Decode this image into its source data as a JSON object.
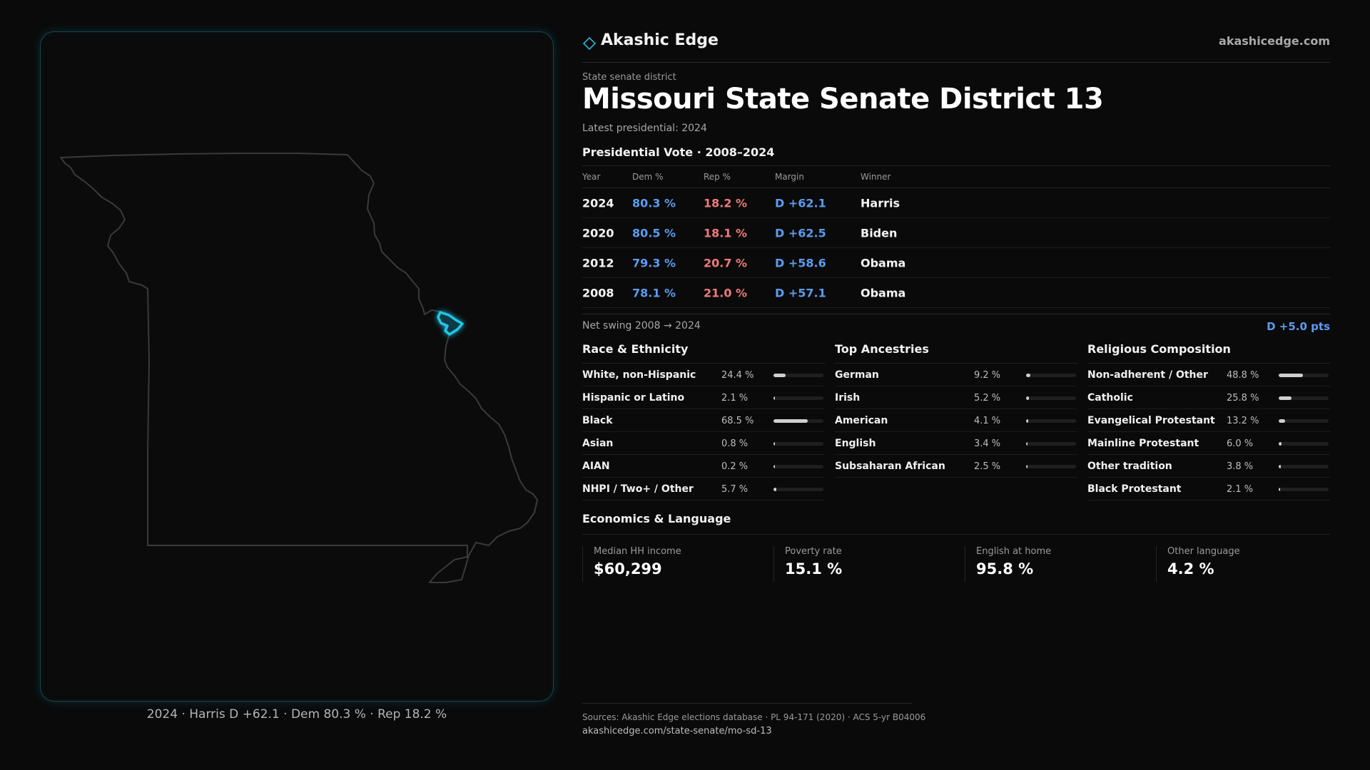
{
  "brand": {
    "name": "Akashic Edge",
    "url": "akashicedge.com",
    "accent": "#1fb8d6"
  },
  "header": {
    "kicker": "State senate district",
    "title": "Missouri State Senate District 13",
    "subtitle": "Latest presidential: 2024"
  },
  "map": {
    "caption": "2024 · Harris D +62.1 · Dem 80.3 % · Rep 18.2 %",
    "state_outline_color": "#3a3a3a",
    "district_color": "#1fb8d6"
  },
  "vote": {
    "title": "Presidential Vote · 2008–2024",
    "columns": [
      "Year",
      "Dem %",
      "Rep %",
      "Margin",
      "Winner"
    ],
    "rows": [
      {
        "year": "2024",
        "dem": "80.3 %",
        "rep": "18.2 %",
        "margin": "D +62.1",
        "winner": "Harris"
      },
      {
        "year": "2020",
        "dem": "80.5 %",
        "rep": "18.1 %",
        "margin": "D +62.5",
        "winner": "Biden"
      },
      {
        "year": "2012",
        "dem": "79.3 %",
        "rep": "20.7 %",
        "margin": "D +58.6",
        "winner": "Obama"
      },
      {
        "year": "2008",
        "dem": "78.1 %",
        "rep": "21.0 %",
        "margin": "D +57.1",
        "winner": "Obama"
      }
    ],
    "dem_color": "#5b9cf0",
    "rep_color": "#f07a7a"
  },
  "swing": {
    "label": "Net swing 2008 → 2024",
    "value": "D +5.0 pts"
  },
  "race": {
    "title": "Race & Ethnicity",
    "rows": [
      {
        "label": "White, non-Hispanic",
        "pct": "24.4 %",
        "value": 24.4
      },
      {
        "label": "Hispanic or Latino",
        "pct": "2.1 %",
        "value": 2.1
      },
      {
        "label": "Black",
        "pct": "68.5 %",
        "value": 68.5
      },
      {
        "label": "Asian",
        "pct": "0.8 %",
        "value": 0.8
      },
      {
        "label": "AIAN",
        "pct": "0.2 %",
        "value": 0.2
      },
      {
        "label": "NHPI / Two+ / Other",
        "pct": "5.7 %",
        "value": 5.7
      }
    ]
  },
  "ancestry": {
    "title": "Top Ancestries",
    "rows": [
      {
        "label": "German",
        "pct": "9.2 %",
        "value": 9.2
      },
      {
        "label": "Irish",
        "pct": "5.2 %",
        "value": 5.2
      },
      {
        "label": "American",
        "pct": "4.1 %",
        "value": 4.1
      },
      {
        "label": "English",
        "pct": "3.4 %",
        "value": 3.4
      },
      {
        "label": "Subsaharan African",
        "pct": "2.5 %",
        "value": 2.5
      }
    ]
  },
  "religion": {
    "title": "Religious Composition",
    "rows": [
      {
        "label": "Non-adherent / Other",
        "pct": "48.8 %",
        "value": 48.8
      },
      {
        "label": "Catholic",
        "pct": "25.8 %",
        "value": 25.8
      },
      {
        "label": "Evangelical Protestant",
        "pct": "13.2 %",
        "value": 13.2
      },
      {
        "label": "Mainline Protestant",
        "pct": "6.0 %",
        "value": 6.0
      },
      {
        "label": "Other tradition",
        "pct": "3.8 %",
        "value": 3.8
      },
      {
        "label": "Black Protestant",
        "pct": "2.1 %",
        "value": 2.1
      }
    ]
  },
  "economics": {
    "title": "Economics & Language",
    "cards": [
      {
        "label": "Median HH income",
        "value": "$60,299"
      },
      {
        "label": "Poverty rate",
        "value": "15.1 %"
      },
      {
        "label": "English at home",
        "value": "95.8 %"
      },
      {
        "label": "Other language",
        "value": "4.2 %"
      }
    ]
  },
  "footer": {
    "sources": "Sources: Akashic Edge elections database · PL 94-171 (2020) · ACS 5-yr B04006",
    "url": "akashicedge.com/state-senate/mo-sd-13"
  }
}
